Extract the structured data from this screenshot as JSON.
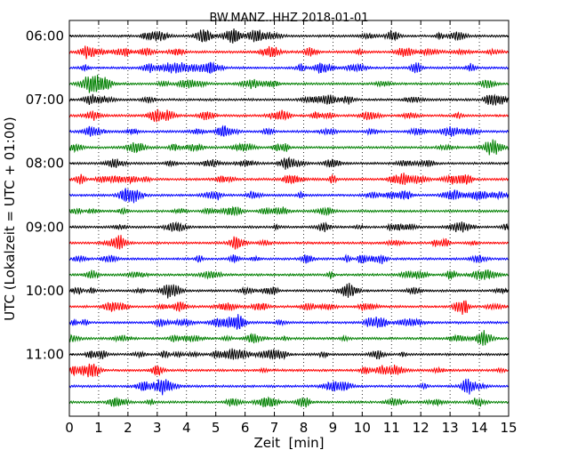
{
  "chart_data": {
    "type": "line",
    "title": "BW.MANZ..HHZ 2018-01-01",
    "xlabel": "Zeit  [min]",
    "ylabel": "UTC (Lokalzeit = UTC + 01:00)",
    "xlim": [
      0,
      15
    ],
    "x_ticks": [
      0,
      1,
      2,
      3,
      4,
      5,
      6,
      7,
      8,
      9,
      10,
      11,
      12,
      13,
      14,
      15
    ],
    "x_tick_labels": [
      "0",
      "1",
      "2",
      "3",
      "4",
      "5",
      "6",
      "7",
      "8",
      "9",
      "10",
      "11",
      "12",
      "13",
      "14",
      "15"
    ],
    "y_tick_labels": [
      "06:00",
      "07:00",
      "08:00",
      "09:00",
      "10:00",
      "11:00"
    ],
    "trace_interval_minutes": 15,
    "vertical_grid": "dotted at each minute",
    "color_cycle": [
      "#000000",
      "#ff0000",
      "#0000ff",
      "#008000"
    ],
    "series": [
      {
        "start": "06:00",
        "color": "#000000"
      },
      {
        "start": "06:15",
        "color": "#ff0000"
      },
      {
        "start": "06:30",
        "color": "#0000ff"
      },
      {
        "start": "06:45",
        "color": "#008000"
      },
      {
        "start": "07:00",
        "color": "#000000"
      },
      {
        "start": "07:15",
        "color": "#ff0000"
      },
      {
        "start": "07:30",
        "color": "#0000ff"
      },
      {
        "start": "07:45",
        "color": "#008000"
      },
      {
        "start": "08:00",
        "color": "#000000"
      },
      {
        "start": "08:15",
        "color": "#ff0000"
      },
      {
        "start": "08:30",
        "color": "#0000ff"
      },
      {
        "start": "08:45",
        "color": "#008000"
      },
      {
        "start": "09:00",
        "color": "#000000"
      },
      {
        "start": "09:15",
        "color": "#ff0000"
      },
      {
        "start": "09:30",
        "color": "#0000ff"
      },
      {
        "start": "09:45",
        "color": "#008000"
      },
      {
        "start": "10:00",
        "color": "#000000"
      },
      {
        "start": "10:15",
        "color": "#ff0000"
      },
      {
        "start": "10:30",
        "color": "#0000ff"
      },
      {
        "start": "10:45",
        "color": "#008000"
      },
      {
        "start": "11:00",
        "color": "#000000"
      },
      {
        "start": "11:15",
        "color": "#ff0000"
      },
      {
        "start": "11:30",
        "color": "#0000ff"
      },
      {
        "start": "11:45",
        "color": "#008000"
      }
    ]
  }
}
